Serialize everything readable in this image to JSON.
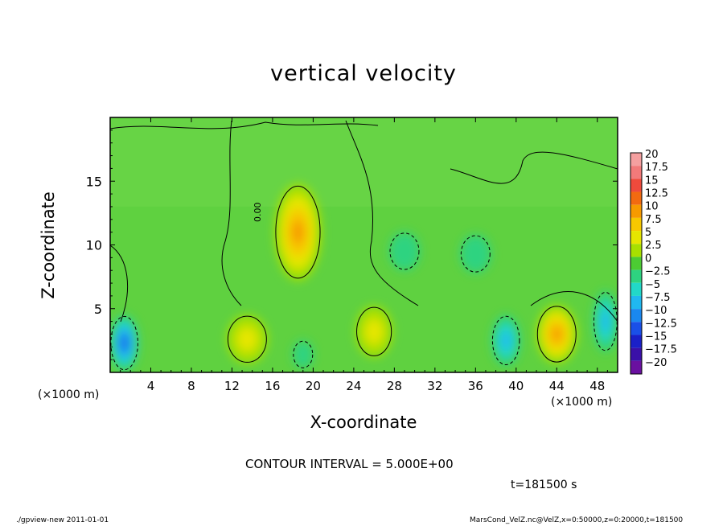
{
  "chart_data": {
    "type": "heatmap",
    "title": "vertical velocity",
    "xlabel": "X-coordinate",
    "ylabel": "Z-coordinate",
    "x_unit_left": "(×1000 m)",
    "x_unit_right": "(×1000 m)",
    "xlim": [
      0,
      50
    ],
    "ylim": [
      0,
      20
    ],
    "x_ticks": [
      4,
      8,
      12,
      16,
      20,
      24,
      28,
      32,
      36,
      40,
      44,
      48
    ],
    "y_ticks": [
      5,
      10,
      15
    ],
    "contour_interval_text": "CONTOUR INTERVAL = 5.000E+00",
    "time_text": "t=181500 s",
    "contour_label": "0.00",
    "colorbar": {
      "labels": [
        "20",
        "17.5",
        "15",
        "12.5",
        "10",
        "7.5",
        "5",
        "2.5",
        "0",
        "−2.5",
        "−5",
        "−7.5",
        "−10",
        "−12.5",
        "−15",
        "−17.5",
        "−20"
      ],
      "colors": [
        "#f5a0a0",
        "#f27a7a",
        "#ee4a3c",
        "#f26a10",
        "#f79a00",
        "#f7c800",
        "#e6e600",
        "#a8e000",
        "#4ccc33",
        "#2ed380",
        "#22d8c8",
        "#20b8f0",
        "#1a88f0",
        "#1a50e8",
        "#1a20c8",
        "#3a10a8",
        "#6a10a0"
      ],
      "field_blobs": [
        {
          "x": 18.5,
          "z": 11.0,
          "rx": 2.3,
          "rz": 3.8,
          "value": 9
        },
        {
          "x": 13.5,
          "z": 2.6,
          "rx": 2.0,
          "rz": 1.9,
          "value": 6
        },
        {
          "x": 26.0,
          "z": 3.2,
          "rx": 1.8,
          "rz": 2.0,
          "value": 6
        },
        {
          "x": 44.0,
          "z": 3.0,
          "rx": 2.0,
          "rz": 2.3,
          "value": 11
        },
        {
          "x": 1.4,
          "z": 2.3,
          "rx": 1.4,
          "rz": 2.2,
          "value": -12
        },
        {
          "x": 39.0,
          "z": 2.5,
          "rx": 1.4,
          "rz": 2.0,
          "value": -7
        },
        {
          "x": 48.8,
          "z": 4.0,
          "rx": 1.2,
          "rz": 2.4,
          "value": -7
        },
        {
          "x": 36.0,
          "z": 9.3,
          "rx": 1.5,
          "rz": 1.5,
          "value": -3
        },
        {
          "x": 29.0,
          "z": 9.5,
          "rx": 1.5,
          "rz": 1.5,
          "value": -3
        },
        {
          "x": 19.0,
          "z": 1.4,
          "rx": 1.0,
          "rz": 1.1,
          "value": -3
        }
      ]
    }
  },
  "footer": {
    "left": "./gpview-new 2011-01-01",
    "right": "MarsCond_VelZ.nc@VelZ,x=0:50000,z=0:20000,t=181500"
  }
}
